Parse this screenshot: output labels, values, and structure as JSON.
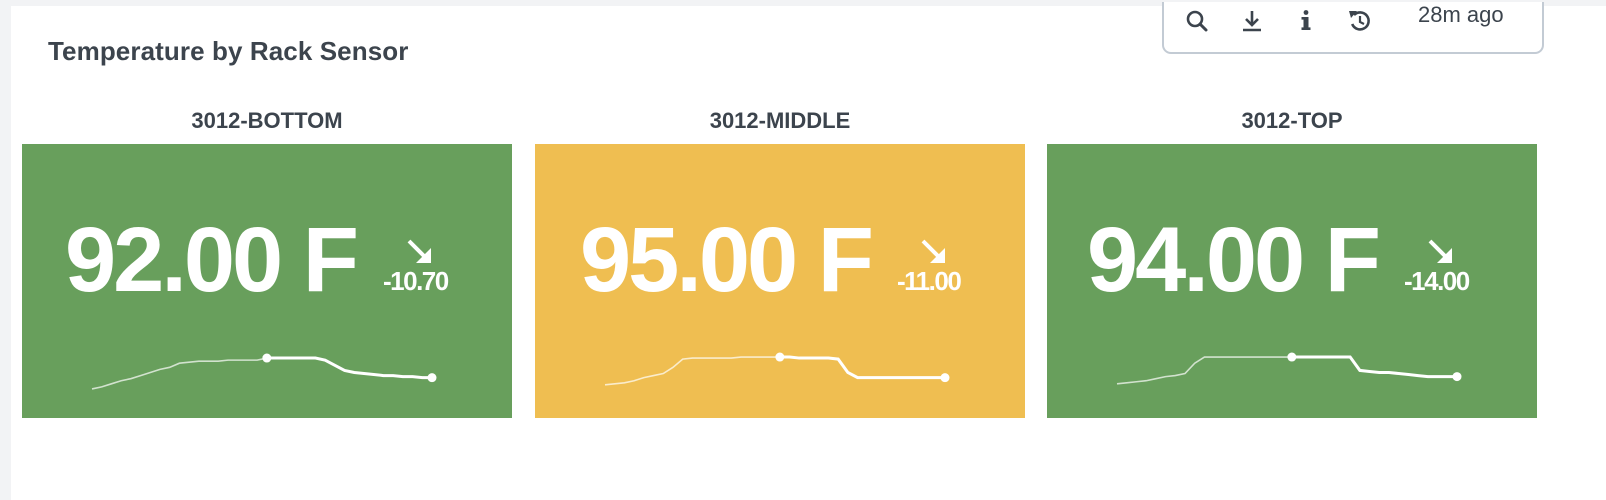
{
  "panel": {
    "title": "Temperature by Rack Sensor",
    "toolbar": {
      "icons": [
        "search-icon",
        "download-icon",
        "info-icon",
        "refresh-icon"
      ],
      "last_refreshed": "28m ago"
    }
  },
  "colors": {
    "ok": "#689f5c",
    "warn": "#efbe51",
    "text": "#3c444d",
    "value_text": "#ffffff"
  },
  "tiles": [
    {
      "label": "3012-BOTTOM",
      "value": "92.00 F",
      "delta": "-10.70",
      "trend": "down",
      "severity": "ok",
      "sparkline": [
        71,
        73,
        76,
        79,
        81,
        84,
        87,
        90,
        92,
        96,
        97,
        98,
        98,
        98,
        99,
        99,
        99,
        99,
        101,
        101,
        101,
        101,
        101,
        101,
        99,
        94,
        89,
        87,
        86,
        85,
        84,
        84,
        83,
        83,
        82,
        82
      ]
    },
    {
      "label": "3012-MIDDLE",
      "value": "95.00 F",
      "delta": "-11.00",
      "trend": "down",
      "severity": "warn",
      "sparkline": [
        75,
        76,
        77,
        79,
        82,
        84,
        86,
        92,
        100,
        101,
        101,
        101,
        101,
        101,
        102,
        102,
        102,
        102,
        102,
        102,
        101,
        101,
        101,
        101,
        100,
        87,
        82,
        82,
        82,
        82,
        82,
        82,
        82,
        82,
        82,
        82
      ]
    },
    {
      "label": "3012-TOP",
      "value": "94.00 F",
      "delta": "-14.00",
      "trend": "down",
      "severity": "ok",
      "sparkline": [
        76,
        77,
        78,
        79,
        81,
        83,
        84,
        86,
        96,
        102,
        102,
        102,
        102,
        102,
        102,
        102,
        102,
        102,
        102,
        102,
        102,
        102,
        102,
        102,
        102,
        89,
        88,
        87,
        87,
        86,
        85,
        84,
        83,
        83,
        83,
        83
      ]
    }
  ]
}
